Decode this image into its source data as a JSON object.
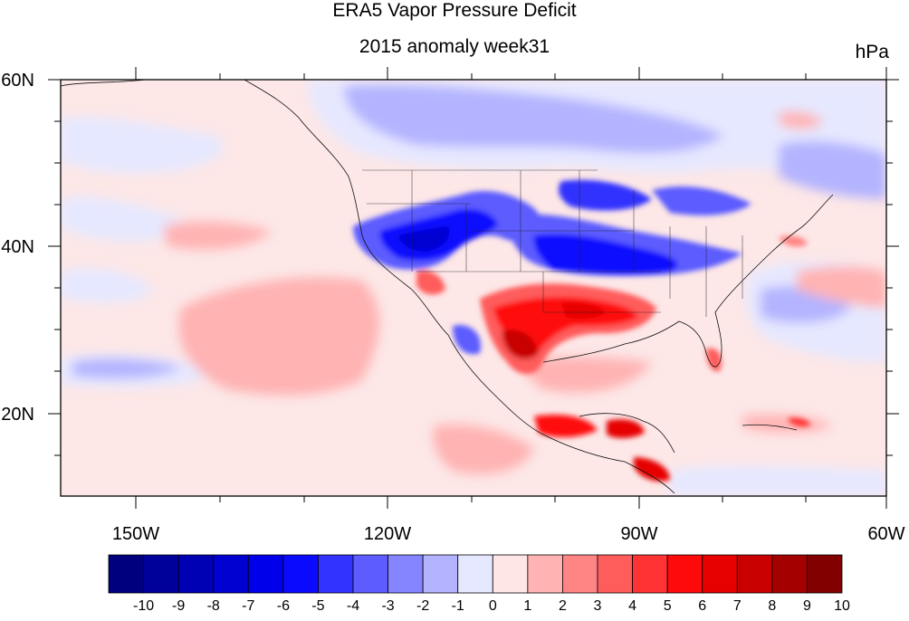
{
  "title": "ERA5 Vapor Pressure Deficit",
  "subtitle": "2015 anomaly week31",
  "units": "hPa",
  "map": {
    "lon_range": [
      -160,
      -60
    ],
    "lat_range": [
      10,
      60
    ],
    "x_ticks": [
      "150W",
      "120W",
      "90W",
      "60W"
    ],
    "y_ticks": [
      "60N",
      "40N",
      "20N"
    ]
  },
  "colorbar": {
    "labels": [
      "-10",
      "-9",
      "-8",
      "-7",
      "-6",
      "-5",
      "-4",
      "-3",
      "-2",
      "-1",
      "0",
      "1",
      "2",
      "3",
      "4",
      "5",
      "6",
      "7",
      "8",
      "9",
      "10"
    ],
    "colors": [
      "#00007f",
      "#00009a",
      "#0000b5",
      "#0000d0",
      "#0000eb",
      "#0a0aff",
      "#3333ff",
      "#5c5cff",
      "#8585ff",
      "#b3b3ff",
      "#e6e8ff",
      "#ffe6e6",
      "#ffb3b3",
      "#ff8585",
      "#ff5c5c",
      "#ff3333",
      "#ff0a0a",
      "#e60000",
      "#c80000",
      "#a50000",
      "#820000"
    ]
  }
}
